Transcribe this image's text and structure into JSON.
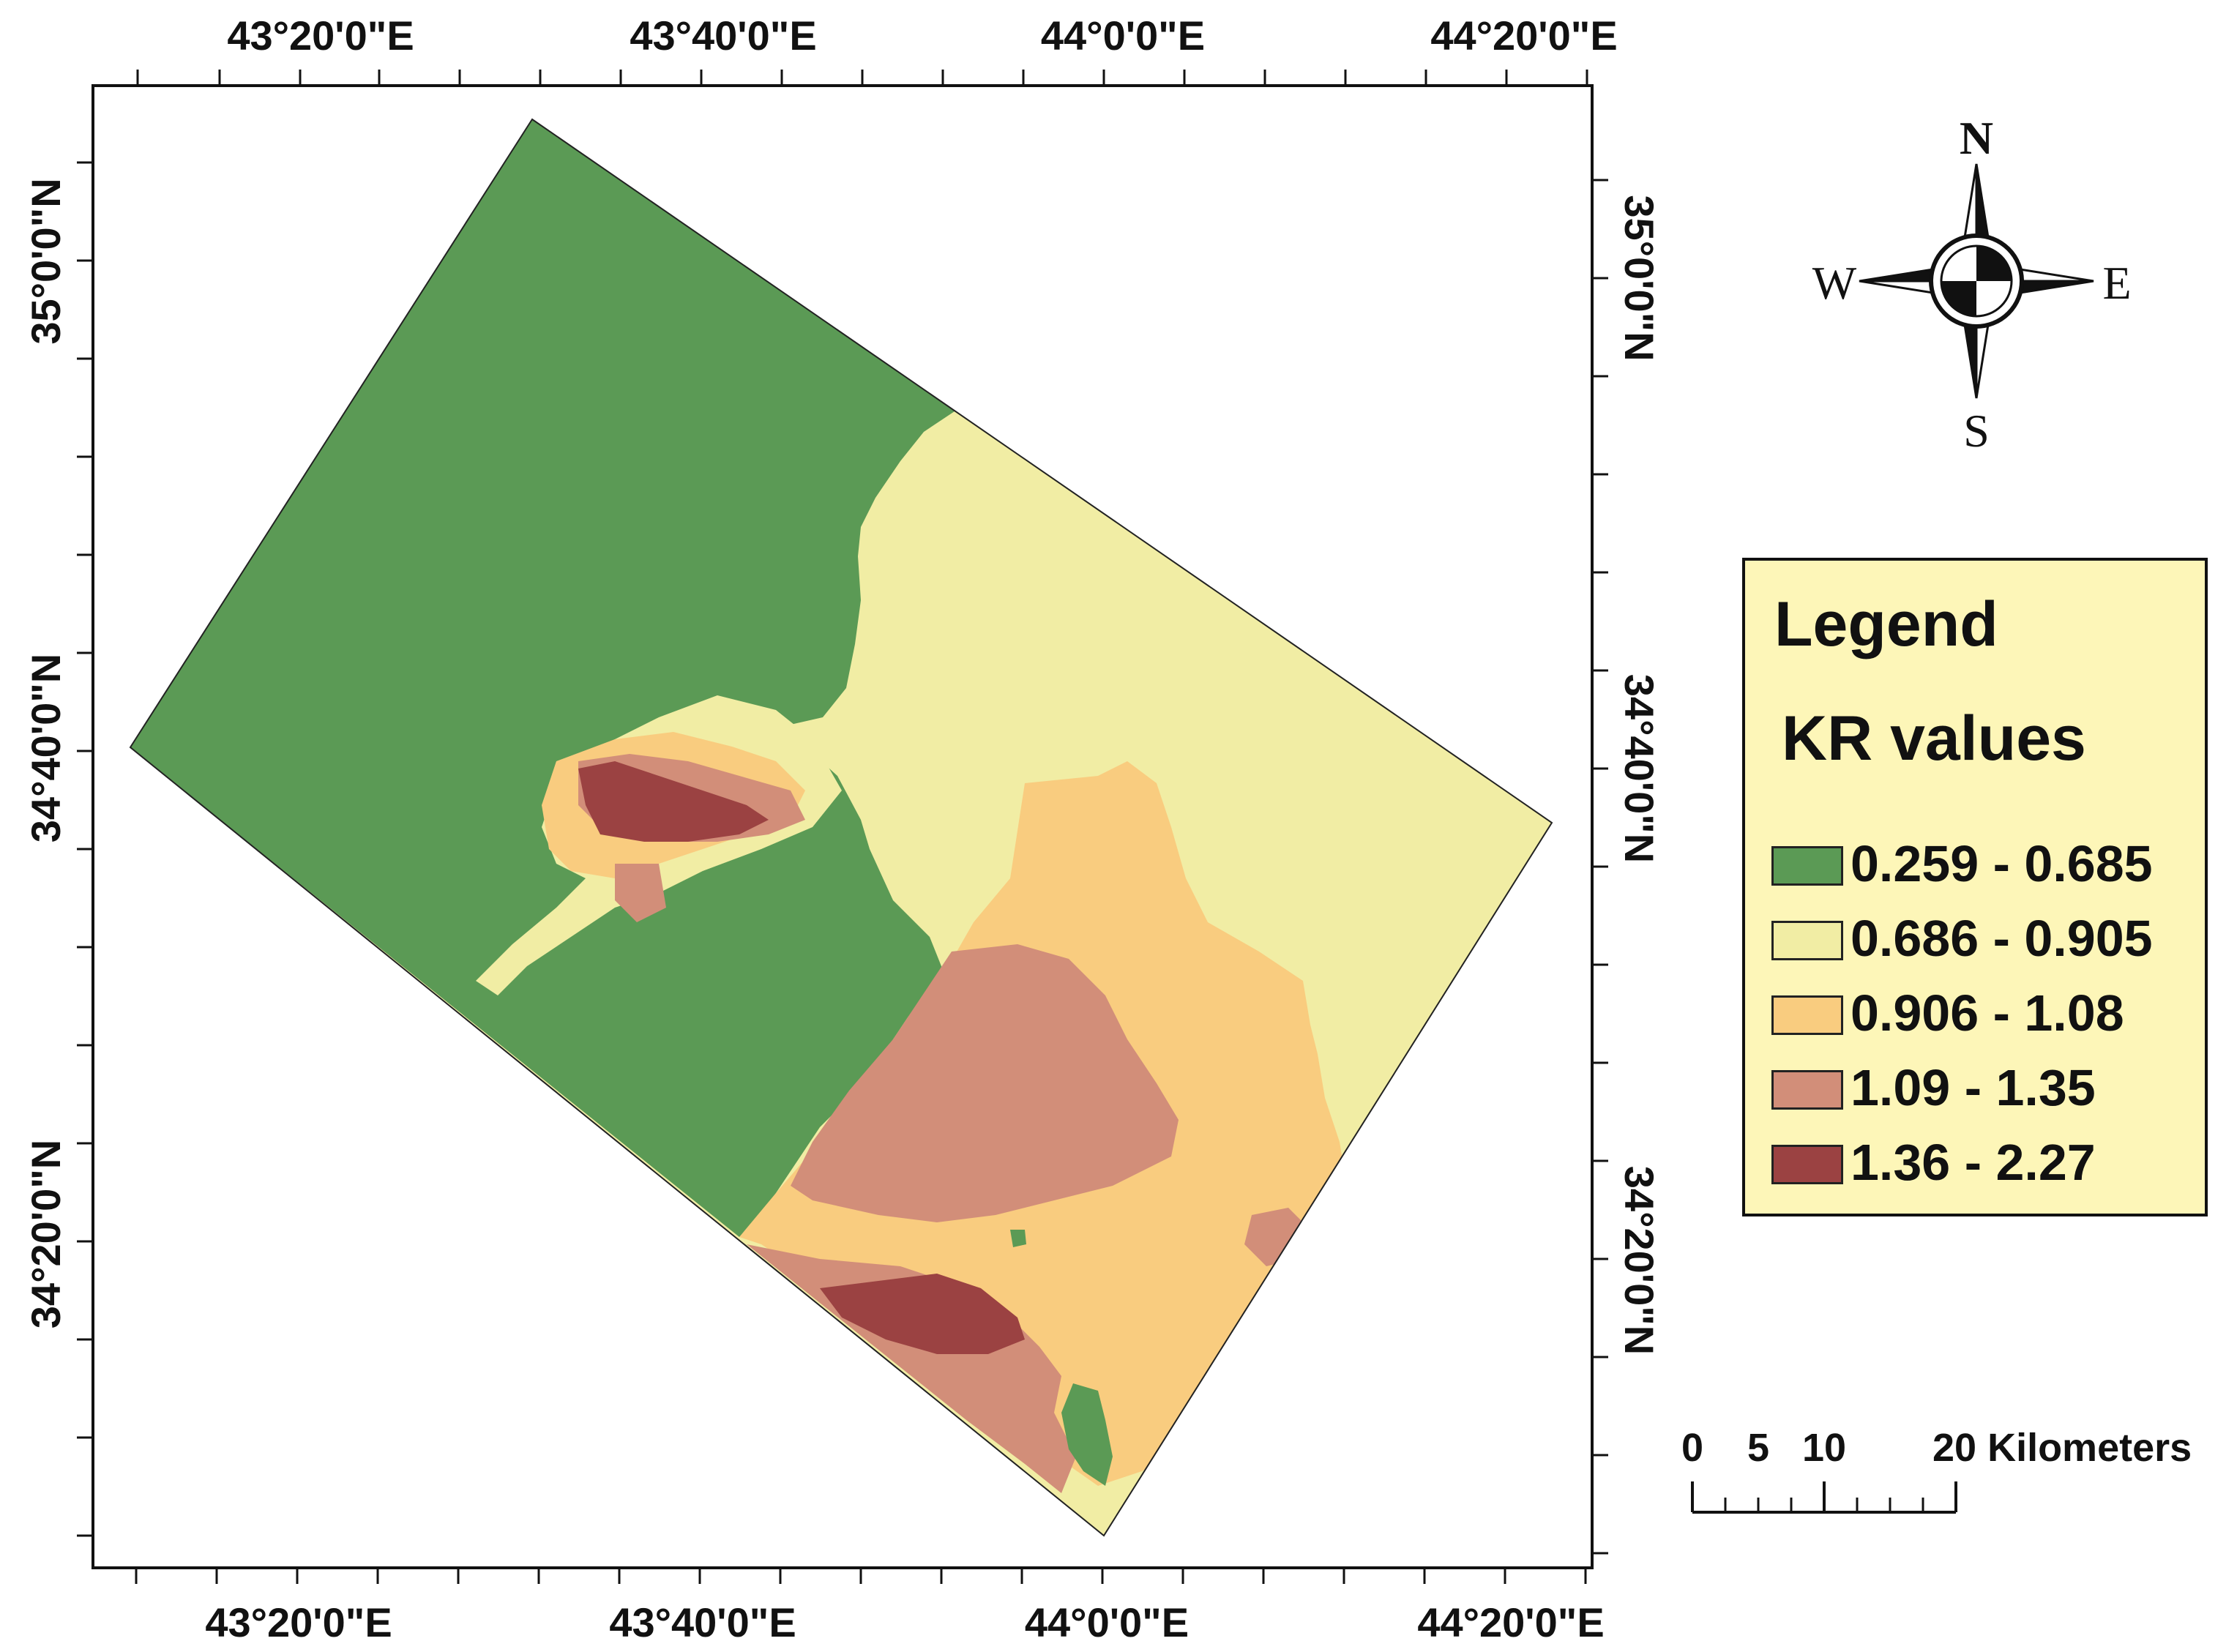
{
  "map": {
    "top_axis_labels": [
      "43°20'0\"E",
      "43°40'0\"E",
      "44°0'0\"E",
      "44°20'0\"E"
    ],
    "bottom_axis_labels": [
      "43°20'0\"E",
      "43°40'0\"E",
      "44°0'0\"E",
      "44°20'0\"E"
    ],
    "left_axis_labels": [
      "35°0'0\"N",
      "34°40'0\"N",
      "34°20'0\"N"
    ],
    "right_axis_labels": [
      "35°0'0\"N",
      "34°40'0\"N",
      "34°20'0\"N"
    ]
  },
  "compass": {
    "north": "N",
    "south": "S",
    "east": "E",
    "west": "W"
  },
  "legend": {
    "title": "Legend",
    "subtitle": "KR values",
    "classes": [
      {
        "label": "0.259 - 0.685",
        "color": "#5b9a55"
      },
      {
        "label": "0.686 - 0.905",
        "color": "#f1eda4"
      },
      {
        "label": "0.906 - 1.08",
        "color": "#f9cc7f"
      },
      {
        "label": "1.09 - 1.35",
        "color": "#d28e79"
      },
      {
        "label": "1.36 - 2.27",
        "color": "#9b4242"
      }
    ]
  },
  "scale_bar": {
    "ticks": [
      "0",
      "5",
      "10",
      "20 Kilometers"
    ]
  }
}
